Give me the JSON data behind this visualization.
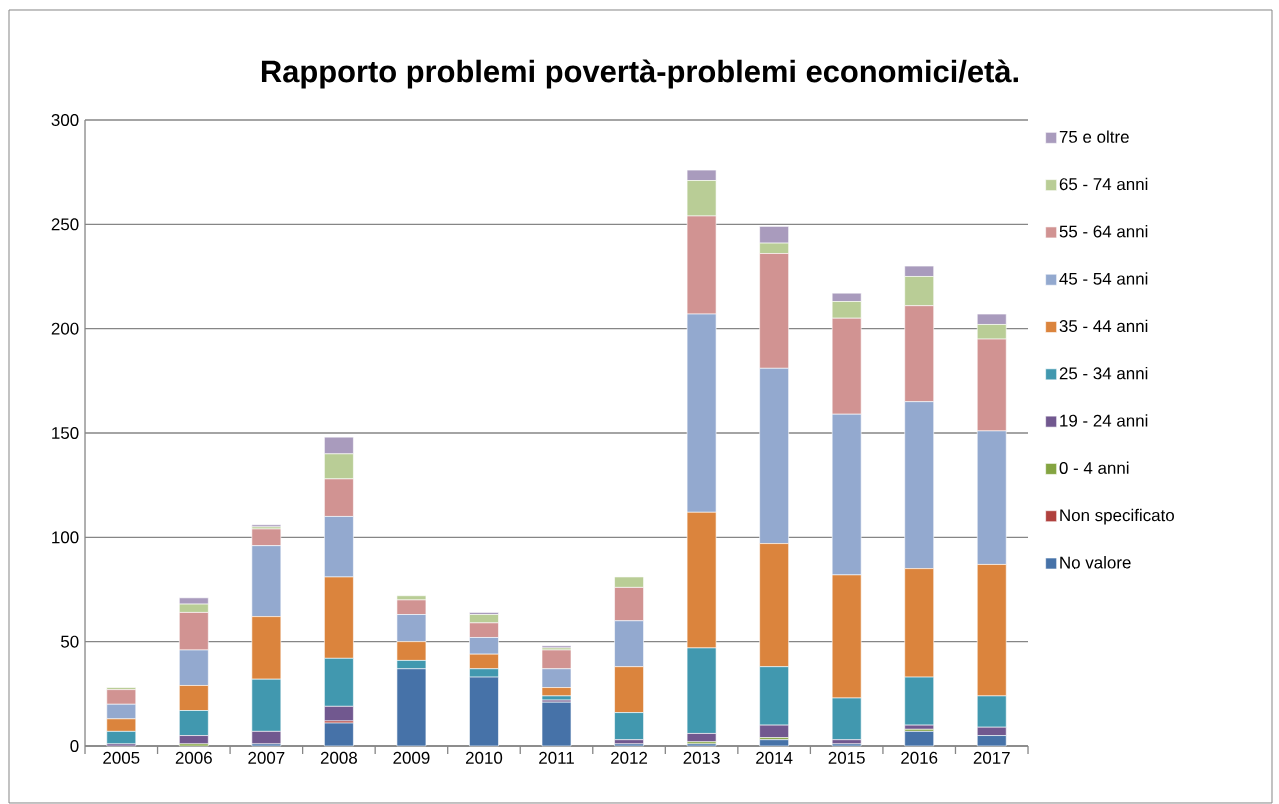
{
  "chart_data": {
    "type": "bar",
    "title": "Rapporto problemi povertà-problemi economici/età.",
    "stacked": true,
    "categories": [
      "2005",
      "2006",
      "2007",
      "2008",
      "2009",
      "2010",
      "2011",
      "2012",
      "2013",
      "2014",
      "2015",
      "2016",
      "2017"
    ],
    "series": [
      {
        "name": "No valore",
        "color": "#4672a8",
        "values": [
          0,
          0,
          1,
          11,
          37,
          33,
          21,
          1,
          1,
          3,
          1,
          7,
          5
        ]
      },
      {
        "name": "Non specificato",
        "color": "#b0413e",
        "values": [
          0,
          0,
          0,
          1,
          0,
          0,
          0,
          0,
          0,
          0,
          0,
          0,
          0
        ]
      },
      {
        "name": "0 - 4 anni",
        "color": "#84a441",
        "values": [
          0,
          1,
          0,
          0,
          0,
          0,
          0,
          0,
          1,
          1,
          0,
          1,
          0
        ]
      },
      {
        "name": "19 - 24 anni",
        "color": "#71588f",
        "values": [
          1,
          4,
          6,
          7,
          0,
          0,
          1,
          2,
          4,
          6,
          2,
          2,
          4
        ]
      },
      {
        "name": "25 - 34 anni",
        "color": "#4198af",
        "values": [
          6,
          12,
          25,
          23,
          4,
          4,
          2,
          13,
          41,
          28,
          20,
          23,
          15
        ]
      },
      {
        "name": "35 - 44 anni",
        "color": "#db843d",
        "values": [
          6,
          12,
          30,
          39,
          9,
          7,
          4,
          22,
          65,
          59,
          59,
          52,
          63
        ]
      },
      {
        "name": "45 - 54 anni",
        "color": "#93a9cf",
        "values": [
          7,
          17,
          34,
          29,
          13,
          8,
          9,
          22,
          95,
          84,
          77,
          80,
          64
        ]
      },
      {
        "name": "55 - 64 anni",
        "color": "#d19392",
        "values": [
          7,
          18,
          8,
          18,
          7,
          7,
          9,
          16,
          47,
          55,
          46,
          46,
          44
        ]
      },
      {
        "name": "65 - 74 anni",
        "color": "#b9cd96",
        "values": [
          1,
          4,
          1,
          12,
          2,
          4,
          1,
          5,
          17,
          5,
          8,
          14,
          7
        ]
      },
      {
        "name": "75 e oltre",
        "color": "#a99bbd",
        "values": [
          0,
          3,
          1,
          8,
          0,
          1,
          1,
          0,
          5,
          8,
          4,
          5,
          5
        ]
      }
    ],
    "ylim": [
      0,
      300
    ],
    "yticks": [
      0,
      50,
      100,
      150,
      200,
      250,
      300
    ],
    "grid": "y",
    "legend": "right"
  }
}
